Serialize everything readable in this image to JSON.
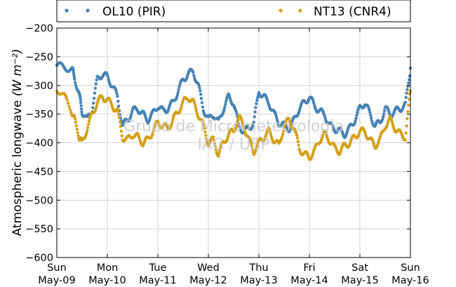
{
  "chart_data": {
    "type": "scatter",
    "title": "",
    "xlabel": "",
    "ylabel": "Atmospheric longwave",
    "ylabel_unit": "(W m⁻²)",
    "ylim": [
      -600,
      -200
    ],
    "yticks": [
      -200,
      -250,
      -300,
      -350,
      -400,
      -450,
      -500,
      -550,
      -600
    ],
    "xlim": [
      "2017-05-09",
      "2017-05-16"
    ],
    "grid": true,
    "legend_position": "top, above plot",
    "categories": [
      {
        "day": "Sun",
        "date": "May-09"
      },
      {
        "day": "Mon",
        "date": "May-10"
      },
      {
        "day": "Tue",
        "date": "May-11"
      },
      {
        "day": "Wed",
        "date": "May-12"
      },
      {
        "day": "Thu",
        "date": "May-13"
      },
      {
        "day": "Fri",
        "date": "May-14"
      },
      {
        "day": "Sat",
        "date": "May-15"
      },
      {
        "day": "Sun",
        "date": "May-16"
      }
    ],
    "series": [
      {
        "name": "OL10 (PIR)",
        "color": "#4682b4",
        "x": [
          0.0,
          0.15,
          0.3,
          0.35,
          0.45,
          0.5,
          0.6,
          0.7,
          0.8,
          0.9,
          1.0,
          1.1,
          1.2,
          1.3,
          1.4,
          1.5,
          1.6,
          1.7,
          1.8,
          1.9,
          2.0,
          2.1,
          2.2,
          2.3,
          2.4,
          2.5,
          2.6,
          2.7,
          2.8,
          2.9,
          3.0,
          3.1,
          3.2,
          3.3,
          3.4,
          3.5,
          3.6,
          3.7,
          3.8,
          3.9,
          4.0,
          4.1,
          4.2,
          4.3,
          4.4,
          4.5,
          4.6,
          4.7,
          4.8,
          4.9,
          5.0,
          5.1,
          5.2,
          5.3,
          5.4,
          5.5,
          5.6,
          5.7,
          5.8,
          5.9,
          6.0,
          6.1,
          6.2,
          6.3,
          6.4,
          6.5,
          6.6,
          6.7,
          6.8,
          6.9,
          7.0
        ],
        "y": [
          -265,
          -268,
          -272,
          -285,
          -320,
          -345,
          -360,
          -340,
          -290,
          -280,
          -285,
          -300,
          -320,
          -370,
          -360,
          -345,
          -340,
          -350,
          -360,
          -350,
          -335,
          -345,
          -340,
          -330,
          -310,
          -290,
          -280,
          -275,
          -300,
          -340,
          -360,
          -350,
          -365,
          -340,
          -320,
          -330,
          -370,
          -380,
          -375,
          -365,
          -310,
          -320,
          -330,
          -350,
          -365,
          -370,
          -375,
          -360,
          -340,
          -330,
          -320,
          -335,
          -345,
          -350,
          -370,
          -375,
          -380,
          -385,
          -375,
          -360,
          -340,
          -330,
          -350,
          -370,
          -365,
          -340,
          -350,
          -345,
          -340,
          -335,
          -270
        ]
      },
      {
        "name": "NT13 (CNR4)",
        "color": "#d4a017",
        "x": [
          0.0,
          0.15,
          0.3,
          0.35,
          0.45,
          0.5,
          0.6,
          0.7,
          0.8,
          0.9,
          1.0,
          1.1,
          1.2,
          1.3,
          1.4,
          1.5,
          1.6,
          1.7,
          1.8,
          1.9,
          2.0,
          2.1,
          2.2,
          2.3,
          2.4,
          2.5,
          2.6,
          2.7,
          2.8,
          2.9,
          3.0,
          3.1,
          3.2,
          3.3,
          3.4,
          3.5,
          3.6,
          3.7,
          3.8,
          3.9,
          4.0,
          4.1,
          4.2,
          4.3,
          4.4,
          4.5,
          4.6,
          4.7,
          4.8,
          4.9,
          5.0,
          5.1,
          5.2,
          5.3,
          5.4,
          5.5,
          5.6,
          5.7,
          5.8,
          5.9,
          6.0,
          6.1,
          6.2,
          6.3,
          6.4,
          6.5,
          6.6,
          6.7,
          6.8,
          6.9,
          7.0
        ],
        "y": [
          -305,
          -320,
          -345,
          -360,
          -390,
          -400,
          -375,
          -350,
          -330,
          -320,
          -325,
          -335,
          -345,
          -390,
          -395,
          -385,
          -390,
          -400,
          -395,
          -380,
          -365,
          -370,
          -375,
          -360,
          -345,
          -330,
          -320,
          -330,
          -350,
          -370,
          -400,
          -395,
          -420,
          -400,
          -385,
          -380,
          -355,
          -370,
          -395,
          -415,
          -400,
          -390,
          -380,
          -395,
          -405,
          -370,
          -360,
          -375,
          -410,
          -420,
          -425,
          -415,
          -395,
          -385,
          -395,
          -410,
          -415,
          -405,
          -400,
          -390,
          -380,
          -380,
          -395,
          -405,
          -395,
          -370,
          -360,
          -375,
          -385,
          -390,
          -310
        ]
      }
    ],
    "annotations": [
      "Grupo de Micrometeorologia",
      "IAG / USP"
    ]
  }
}
